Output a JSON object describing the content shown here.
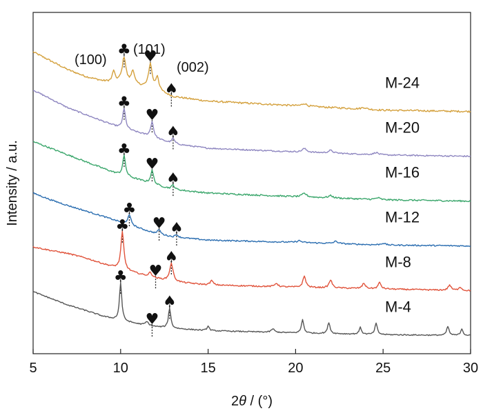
{
  "chart_data": {
    "type": "line",
    "xlabel_prefix": "2",
    "xlabel_symbol": "θ",
    "xlabel_suffix": " / (°)",
    "ylabel": "Intensity / a.u.",
    "xlim": [
      5,
      30
    ],
    "xticks": [
      5,
      10,
      15,
      20,
      25,
      30
    ],
    "yticks_shown": false,
    "grid": false,
    "peak_labels": [
      "(100)",
      "(101)",
      "(002)"
    ],
    "marker_symbols": {
      "100": "♣",
      "101": "♥",
      "002": "♠"
    },
    "series": [
      {
        "name": "M-24",
        "color": "#d4a03c",
        "offset": 5.0,
        "baseline": [
          [
            5,
            1.35
          ],
          [
            6,
            1.15
          ],
          [
            7,
            0.95
          ],
          [
            8,
            0.8
          ],
          [
            9,
            0.7
          ],
          [
            9.6,
            0.68
          ],
          [
            10,
            0.7
          ],
          [
            11,
            0.6
          ],
          [
            12,
            0.5
          ],
          [
            13,
            0.35
          ],
          [
            15,
            0.25
          ],
          [
            20,
            0.15
          ],
          [
            25,
            0.05
          ],
          [
            30,
            0.02
          ]
        ],
        "peaks": [
          [
            9.6,
            0.25,
            0.08
          ],
          [
            10.2,
            0.55,
            0.12
          ],
          [
            10.7,
            0.3,
            0.1
          ],
          [
            11.7,
            0.55,
            0.12
          ],
          [
            12.1,
            0.3,
            0.1
          ],
          [
            20.5,
            0.06,
            0.15
          ],
          [
            23.9,
            0.04,
            0.15
          ]
        ],
        "noise": 0.04
      },
      {
        "name": "M-20",
        "color": "#8e86c0",
        "offset": 4.0,
        "baseline": [
          [
            5,
            1.5
          ],
          [
            6,
            1.3
          ],
          [
            7,
            1.1
          ],
          [
            8,
            0.95
          ],
          [
            9,
            0.8
          ],
          [
            10,
            0.65
          ],
          [
            11,
            0.55
          ],
          [
            12,
            0.42
          ],
          [
            13,
            0.3
          ],
          [
            15,
            0.2
          ],
          [
            20,
            0.12
          ],
          [
            25,
            0.05
          ],
          [
            30,
            0.02
          ]
        ],
        "peaks": [
          [
            10.2,
            0.45,
            0.1
          ],
          [
            11.8,
            0.35,
            0.1
          ],
          [
            13.0,
            0.12,
            0.1
          ],
          [
            20.5,
            0.08,
            0.15
          ],
          [
            22.0,
            0.06,
            0.15
          ],
          [
            24.6,
            0.05,
            0.15
          ]
        ],
        "noise": 0.03
      },
      {
        "name": "M-16",
        "color": "#3aa66b",
        "offset": 3.0,
        "baseline": [
          [
            5,
            1.35
          ],
          [
            6,
            1.2
          ],
          [
            7,
            1.05
          ],
          [
            8,
            0.9
          ],
          [
            9,
            0.75
          ],
          [
            10,
            0.6
          ],
          [
            11,
            0.5
          ],
          [
            12,
            0.38
          ],
          [
            13,
            0.28
          ],
          [
            15,
            0.2
          ],
          [
            20,
            0.12
          ],
          [
            25,
            0.05
          ],
          [
            30,
            0.02
          ]
        ],
        "peaks": [
          [
            10.2,
            0.45,
            0.1
          ],
          [
            11.8,
            0.3,
            0.1
          ],
          [
            13.0,
            0.1,
            0.1
          ],
          [
            20.5,
            0.08,
            0.15
          ],
          [
            22.0,
            0.05,
            0.15
          ],
          [
            24.7,
            0.04,
            0.15
          ]
        ],
        "noise": 0.035
      },
      {
        "name": "M-12",
        "color": "#2a6db0",
        "offset": 2.0,
        "baseline": [
          [
            5,
            1.2
          ],
          [
            6,
            1.05
          ],
          [
            7,
            0.92
          ],
          [
            8,
            0.8
          ],
          [
            9,
            0.68
          ],
          [
            10,
            0.55
          ],
          [
            11,
            0.42
          ],
          [
            12,
            0.3
          ],
          [
            13,
            0.22
          ],
          [
            15,
            0.15
          ],
          [
            20,
            0.1
          ],
          [
            25,
            0.04
          ],
          [
            30,
            0.02
          ]
        ],
        "peaks": [
          [
            10.5,
            0.22,
            0.12
          ],
          [
            12.2,
            0.1,
            0.1
          ],
          [
            13.2,
            0.06,
            0.1
          ],
          [
            20.2,
            0.04,
            0.15
          ],
          [
            22.3,
            0.05,
            0.15
          ],
          [
            25.0,
            0.04,
            0.15
          ]
        ],
        "noise": 0.03
      },
      {
        "name": "M-8",
        "color": "#e0523a",
        "offset": 1.0,
        "baseline": [
          [
            5,
            1.0
          ],
          [
            6,
            0.92
          ],
          [
            7,
            0.85
          ],
          [
            8,
            0.75
          ],
          [
            9,
            0.62
          ],
          [
            10,
            0.5
          ],
          [
            11,
            0.4
          ],
          [
            12,
            0.3
          ],
          [
            13,
            0.22
          ],
          [
            15,
            0.15
          ],
          [
            20,
            0.1
          ],
          [
            25,
            0.06
          ],
          [
            30,
            0.02
          ]
        ],
        "peaks": [
          [
            10.1,
            0.85,
            0.1
          ],
          [
            11.7,
            0.1,
            0.1
          ],
          [
            12.9,
            0.4,
            0.12
          ],
          [
            15.2,
            0.1,
            0.1
          ],
          [
            18.9,
            0.08,
            0.1
          ],
          [
            20.5,
            0.25,
            0.1
          ],
          [
            22.0,
            0.18,
            0.1
          ],
          [
            23.9,
            0.12,
            0.1
          ],
          [
            24.8,
            0.14,
            0.1
          ],
          [
            28.8,
            0.12,
            0.1
          ],
          [
            29.4,
            0.08,
            0.1
          ]
        ],
        "noise": 0.03
      },
      {
        "name": "M-4",
        "color": "#555555",
        "offset": 0.0,
        "baseline": [
          [
            5,
            1.0
          ],
          [
            6,
            0.85
          ],
          [
            7,
            0.7
          ],
          [
            8,
            0.58
          ],
          [
            9,
            0.45
          ],
          [
            10,
            0.35
          ],
          [
            11,
            0.28
          ],
          [
            12,
            0.22
          ],
          [
            13,
            0.18
          ],
          [
            15,
            0.13
          ],
          [
            20,
            0.08
          ],
          [
            25,
            0.04
          ],
          [
            30,
            0.02
          ]
        ],
        "peaks": [
          [
            10.0,
            0.85,
            0.08
          ],
          [
            11.5,
            0.08,
            0.1
          ],
          [
            12.8,
            0.45,
            0.08
          ],
          [
            15.0,
            0.1,
            0.08
          ],
          [
            18.7,
            0.08,
            0.1
          ],
          [
            20.4,
            0.3,
            0.08
          ],
          [
            21.9,
            0.25,
            0.08
          ],
          [
            23.7,
            0.15,
            0.08
          ],
          [
            24.6,
            0.25,
            0.08
          ],
          [
            28.7,
            0.2,
            0.08
          ],
          [
            29.5,
            0.15,
            0.08
          ]
        ],
        "noise": 0.025
      }
    ],
    "marker_positions": [
      {
        "series": "M-24",
        "items": [
          [
            "100",
            10.2
          ],
          [
            "101",
            11.7
          ],
          [
            "002",
            12.9
          ]
        ]
      },
      {
        "series": "M-20",
        "items": [
          [
            "100",
            10.2
          ],
          [
            "101",
            11.8
          ],
          [
            "002",
            13.0
          ]
        ]
      },
      {
        "series": "M-16",
        "items": [
          [
            "100",
            10.2
          ],
          [
            "101",
            11.8
          ],
          [
            "002",
            13.0
          ]
        ]
      },
      {
        "series": "M-12",
        "items": [
          [
            "100",
            10.5
          ],
          [
            "101",
            12.2
          ],
          [
            "002",
            13.2
          ]
        ]
      },
      {
        "series": "M-8",
        "items": [
          [
            "100",
            10.1
          ],
          [
            "101",
            12.0
          ],
          [
            "002",
            12.9
          ]
        ]
      },
      {
        "series": "M-4",
        "items": [
          [
            "100",
            10.0
          ],
          [
            "101",
            11.8
          ],
          [
            "002",
            12.8
          ]
        ]
      }
    ],
    "dotted_lines": [
      10.2,
      11.7,
      12.9,
      10.5,
      12.2,
      13.2,
      10.1,
      12.0,
      10.0,
      11.8,
      12.8
    ]
  }
}
